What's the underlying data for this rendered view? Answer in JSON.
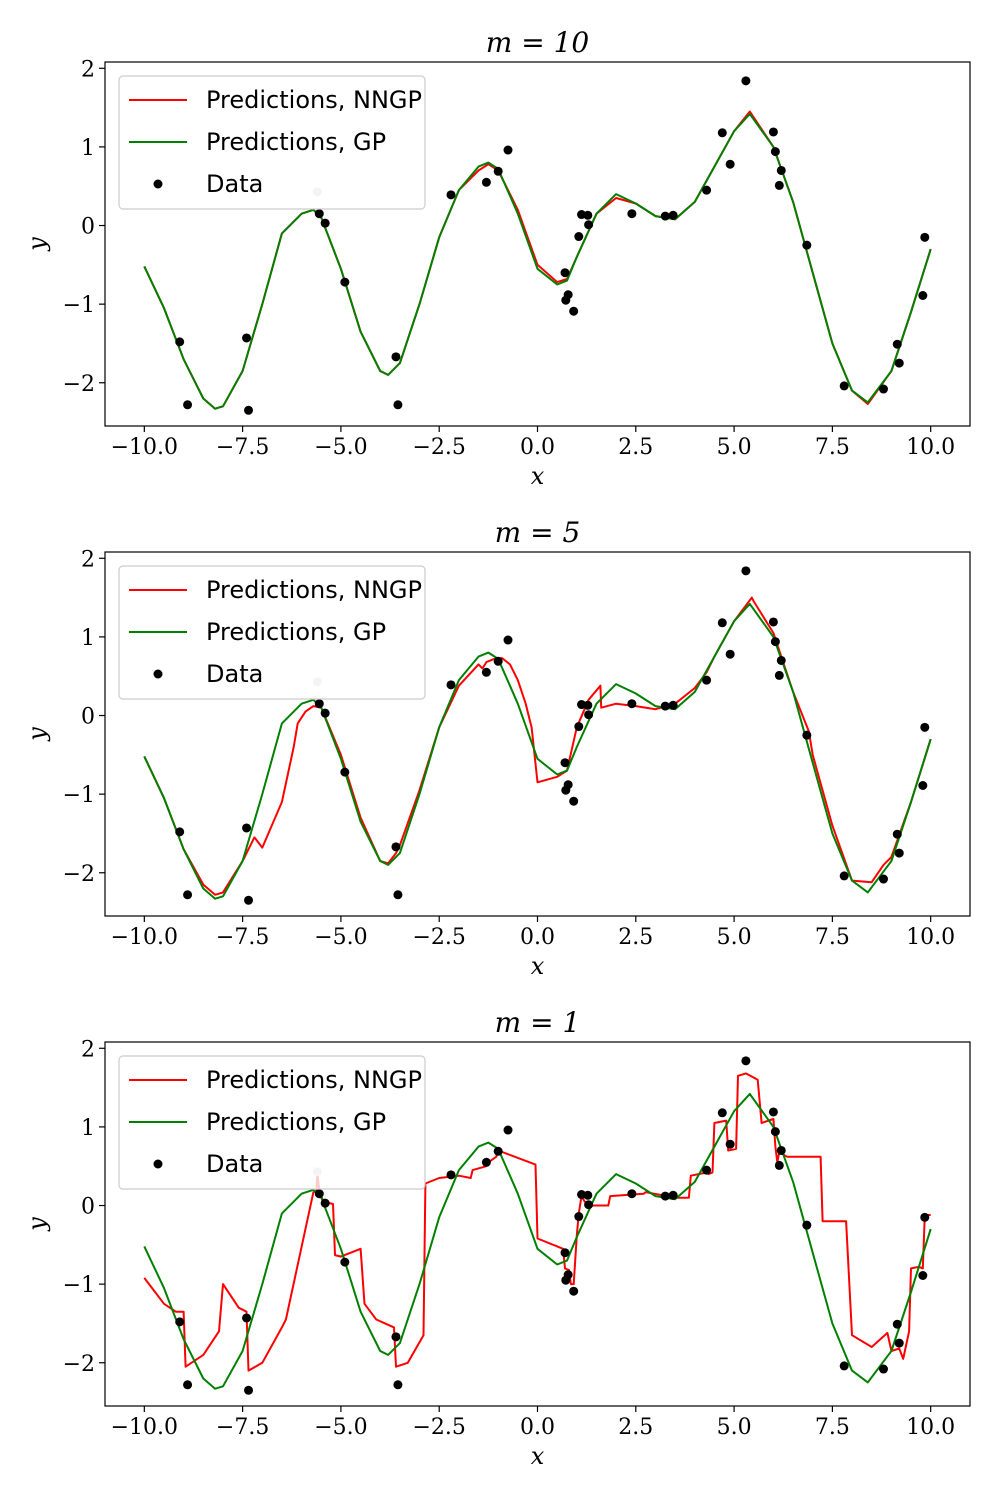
{
  "colors": {
    "nngp": "#ff0000",
    "gp": "#008000",
    "data": "#000000"
  },
  "chart_data": [
    {
      "type": "line",
      "title": "m = 10",
      "xlabel": "x",
      "ylabel": "y",
      "xlim": [
        -11,
        11
      ],
      "ylim": [
        -2.55,
        2.08
      ],
      "xticks": [
        -10,
        -7.5,
        -5,
        -2.5,
        0,
        2.5,
        5,
        7.5,
        10
      ],
      "xtick_labels": [
        "−10.0",
        "−7.5",
        "−5.0",
        "−2.5",
        "0.0",
        "2.5",
        "5.0",
        "7.5",
        "10.0"
      ],
      "yticks": [
        -2,
        -1,
        0,
        1,
        2
      ],
      "ytick_labels": [
        "−2",
        "−1",
        "0",
        "1",
        "2"
      ],
      "legend": {
        "placement": "top-left",
        "entries": [
          "Predictions, NNGP",
          "Predictions, GP",
          "Data"
        ]
      },
      "series": [
        {
          "name": "Predictions, NNGP",
          "x": [
            -10,
            -9.5,
            -9,
            -8.5,
            -8.2,
            -8,
            -7.5,
            -7,
            -6.5,
            -6,
            -5.7,
            -5.5,
            -5,
            -4.5,
            -4,
            -3.8,
            -3.5,
            -3,
            -2.5,
            -2,
            -1.5,
            -1.25,
            -1,
            -0.5,
            0,
            0.5,
            0.75,
            1,
            1.5,
            2,
            2.5,
            3,
            3.5,
            4,
            4.5,
            5,
            5.4,
            6,
            6.5,
            7,
            7.5,
            8,
            8.4,
            9,
            9.5,
            10
          ],
          "y": [
            -0.52,
            -1.05,
            -1.7,
            -2.2,
            -2.33,
            -2.3,
            -1.85,
            -1.0,
            -0.1,
            0.15,
            0.2,
            0.1,
            -0.55,
            -1.35,
            -1.85,
            -1.9,
            -1.75,
            -1.0,
            -0.15,
            0.45,
            0.7,
            0.78,
            0.7,
            0.2,
            -0.5,
            -0.72,
            -0.68,
            -0.4,
            0.15,
            0.35,
            0.28,
            0.12,
            0.08,
            0.3,
            0.75,
            1.2,
            1.45,
            1.0,
            0.3,
            -0.6,
            -1.5,
            -2.1,
            -2.27,
            -1.85,
            -1.1,
            -0.3
          ]
        },
        {
          "name": "Predictions, GP",
          "x": [
            -10,
            -9.5,
            -9,
            -8.5,
            -8.2,
            -8,
            -7.5,
            -7,
            -6.5,
            -6,
            -5.7,
            -5.5,
            -5,
            -4.5,
            -4,
            -3.8,
            -3.5,
            -3,
            -2.5,
            -2,
            -1.5,
            -1.25,
            -1,
            -0.5,
            0,
            0.5,
            0.75,
            1,
            1.5,
            2,
            2.5,
            3,
            3.5,
            4,
            4.5,
            5,
            5.4,
            6,
            6.5,
            7,
            7.5,
            8,
            8.4,
            9,
            9.5,
            10
          ],
          "y": [
            -0.52,
            -1.05,
            -1.7,
            -2.2,
            -2.33,
            -2.3,
            -1.85,
            -1.0,
            -0.1,
            0.15,
            0.2,
            0.1,
            -0.55,
            -1.35,
            -1.85,
            -1.9,
            -1.75,
            -1.0,
            -0.15,
            0.45,
            0.75,
            0.8,
            0.72,
            0.15,
            -0.55,
            -0.75,
            -0.7,
            -0.4,
            0.15,
            0.4,
            0.28,
            0.12,
            0.08,
            0.3,
            0.75,
            1.2,
            1.42,
            1.0,
            0.3,
            -0.6,
            -1.5,
            -2.1,
            -2.25,
            -1.85,
            -1.1,
            -0.3
          ]
        }
      ],
      "points": {
        "name": "Data",
        "x": [
          -9.1,
          -8.9,
          -7.4,
          -7.35,
          -5.6,
          -5.55,
          -5.4,
          -4.9,
          -3.6,
          -3.55,
          -2.2,
          -1.3,
          -1.0,
          -0.75,
          0.7,
          0.72,
          0.78,
          0.92,
          1.05,
          1.12,
          1.28,
          1.3,
          2.4,
          3.25,
          3.45,
          4.3,
          4.7,
          4.9,
          5.3,
          6.0,
          6.05,
          6.15,
          6.2,
          6.85,
          7.8,
          8.8,
          9.15,
          9.2,
          9.8,
          9.85
        ],
        "y": [
          -1.48,
          -2.28,
          -1.43,
          -2.35,
          0.43,
          0.15,
          0.03,
          -0.72,
          -1.67,
          -2.28,
          0.39,
          0.55,
          0.69,
          0.96,
          -0.6,
          -0.95,
          -0.88,
          -1.09,
          -0.14,
          0.14,
          0.13,
          0.01,
          0.15,
          0.12,
          0.13,
          0.45,
          1.18,
          0.78,
          1.84,
          1.19,
          0.94,
          0.51,
          0.7,
          -0.25,
          -2.04,
          -2.08,
          -1.51,
          -1.75,
          -0.89,
          -0.15
        ],
        "light_index": 4
      }
    },
    {
      "type": "line",
      "title": "m = 5",
      "xlabel": "x",
      "ylabel": "y",
      "xlim": [
        -11,
        11
      ],
      "ylim": [
        -2.55,
        2.08
      ],
      "xticks": [
        -10,
        -7.5,
        -5,
        -2.5,
        0,
        2.5,
        5,
        7.5,
        10
      ],
      "xtick_labels": [
        "−10.0",
        "−7.5",
        "−5.0",
        "−2.5",
        "0.0",
        "2.5",
        "5.0",
        "7.5",
        "10.0"
      ],
      "yticks": [
        -2,
        -1,
        0,
        1,
        2
      ],
      "ytick_labels": [
        "−2",
        "−1",
        "0",
        "1",
        "2"
      ],
      "legend": {
        "placement": "top-left",
        "entries": [
          "Predictions, NNGP",
          "Predictions, GP",
          "Data"
        ]
      },
      "series": [
        {
          "name": "Predictions, NNGP",
          "x": [
            -10,
            -9.5,
            -9,
            -8.5,
            -8.2,
            -8,
            -7.5,
            -7.2,
            -7,
            -6.5,
            -6.2,
            -6.1,
            -5.9,
            -5.7,
            -5.5,
            -5,
            -4.5,
            -4,
            -3.8,
            -3.6,
            -3.5,
            -3,
            -2.5,
            -2,
            -1.5,
            -1.4,
            -1.3,
            -1.1,
            -0.9,
            -0.7,
            -0.5,
            -0.3,
            -0.2,
            -0.15,
            0.0,
            0.5,
            0.75,
            1.0,
            1.3,
            1.6,
            1.62,
            2.0,
            2.5,
            3.0,
            3.5,
            4.0,
            4.3,
            4.5,
            5.0,
            5.45,
            5.5,
            6.0,
            6.5,
            6.9,
            7.0,
            7.5,
            8.0,
            8.5,
            8.8,
            9.0,
            9.5,
            10.0
          ],
          "y": [
            -0.52,
            -1.05,
            -1.7,
            -2.15,
            -2.28,
            -2.25,
            -1.85,
            -1.55,
            -1.68,
            -1.1,
            -0.4,
            -0.1,
            0.05,
            0.12,
            0.1,
            -0.5,
            -1.3,
            -1.85,
            -1.88,
            -1.75,
            -1.65,
            -0.95,
            -0.15,
            0.38,
            0.65,
            0.6,
            0.68,
            0.72,
            0.73,
            0.65,
            0.45,
            0.15,
            -0.05,
            -0.15,
            -0.85,
            -0.78,
            -0.7,
            -0.15,
            0.2,
            0.38,
            0.1,
            0.15,
            0.12,
            0.08,
            0.15,
            0.35,
            0.55,
            0.75,
            1.2,
            1.5,
            1.45,
            1.05,
            0.3,
            -0.2,
            -0.5,
            -1.4,
            -2.1,
            -2.12,
            -1.9,
            -1.8,
            -1.1,
            -0.3
          ]
        },
        {
          "name": "Predictions, GP",
          "x": [
            -10,
            -9.5,
            -9,
            -8.5,
            -8.2,
            -8,
            -7.5,
            -7,
            -6.5,
            -6,
            -5.7,
            -5.5,
            -5,
            -4.5,
            -4,
            -3.8,
            -3.5,
            -3,
            -2.5,
            -2,
            -1.5,
            -1.25,
            -1,
            -0.5,
            0,
            0.5,
            0.75,
            1,
            1.5,
            2,
            2.5,
            3,
            3.5,
            4,
            4.5,
            5,
            5.4,
            6,
            6.5,
            7,
            7.5,
            8,
            8.4,
            9,
            9.5,
            10
          ],
          "y": [
            -0.52,
            -1.05,
            -1.7,
            -2.2,
            -2.33,
            -2.3,
            -1.85,
            -1.0,
            -0.1,
            0.15,
            0.2,
            0.1,
            -0.55,
            -1.35,
            -1.85,
            -1.9,
            -1.75,
            -1.0,
            -0.15,
            0.45,
            0.75,
            0.8,
            0.72,
            0.15,
            -0.55,
            -0.75,
            -0.7,
            -0.4,
            0.15,
            0.4,
            0.28,
            0.12,
            0.08,
            0.3,
            0.75,
            1.2,
            1.42,
            1.0,
            0.3,
            -0.6,
            -1.5,
            -2.1,
            -2.25,
            -1.85,
            -1.1,
            -0.3
          ]
        }
      ],
      "points": {
        "name": "Data",
        "x": [
          -9.1,
          -8.9,
          -7.4,
          -7.35,
          -5.6,
          -5.55,
          -5.4,
          -4.9,
          -3.6,
          -3.55,
          -2.2,
          -1.3,
          -1.0,
          -0.75,
          0.7,
          0.72,
          0.78,
          0.92,
          1.05,
          1.12,
          1.28,
          1.3,
          2.4,
          3.25,
          3.45,
          4.3,
          4.7,
          4.9,
          5.3,
          6.0,
          6.05,
          6.15,
          6.2,
          6.85,
          7.8,
          8.8,
          9.15,
          9.2,
          9.8,
          9.85
        ],
        "y": [
          -1.48,
          -2.28,
          -1.43,
          -2.35,
          0.43,
          0.15,
          0.03,
          -0.72,
          -1.67,
          -2.28,
          0.39,
          0.55,
          0.69,
          0.96,
          -0.6,
          -0.95,
          -0.88,
          -1.09,
          -0.14,
          0.14,
          0.13,
          0.01,
          0.15,
          0.12,
          0.13,
          0.45,
          1.18,
          0.78,
          1.84,
          1.19,
          0.94,
          0.51,
          0.7,
          -0.25,
          -2.04,
          -2.08,
          -1.51,
          -1.75,
          -0.89,
          -0.15
        ],
        "light_index": 4
      }
    },
    {
      "type": "line",
      "title": "m = 1",
      "xlabel": "x",
      "ylabel": "y",
      "xlim": [
        -11,
        11
      ],
      "ylim": [
        -2.55,
        2.08
      ],
      "xticks": [
        -10,
        -7.5,
        -5,
        -2.5,
        0,
        2.5,
        5,
        7.5,
        10
      ],
      "xtick_labels": [
        "−10.0",
        "−7.5",
        "−5.0",
        "−2.5",
        "0.0",
        "2.5",
        "5.0",
        "7.5",
        "10.0"
      ],
      "yticks": [
        -2,
        -1,
        0,
        1,
        2
      ],
      "ytick_labels": [
        "−2",
        "−1",
        "0",
        "1",
        "2"
      ],
      "legend": {
        "placement": "top-left",
        "entries": [
          "Predictions, NNGP",
          "Predictions, GP",
          "Data"
        ]
      },
      "series": [
        {
          "name": "Predictions, NNGP",
          "x": [
            -10,
            -9.5,
            -9.2,
            -9.0,
            -8.95,
            -8.5,
            -8.1,
            -8.0,
            -7.6,
            -7.4,
            -7.35,
            -7.0,
            -6.5,
            -6.4,
            -5.7,
            -5.62,
            -5.6,
            -5.55,
            -5.45,
            -5.2,
            -5.15,
            -5.0,
            -4.5,
            -4.4,
            -4.1,
            -3.65,
            -3.6,
            -3.3,
            -2.9,
            -2.85,
            -2.5,
            -2.0,
            -1.7,
            -1.65,
            -1.3,
            -1.25,
            -1.05,
            -1.0,
            -0.05,
            0.0,
            0.5,
            0.65,
            0.7,
            0.8,
            0.85,
            0.92,
            1.0,
            1.05,
            1.12,
            1.2,
            1.3,
            1.8,
            1.85,
            2.7,
            2.75,
            3.2,
            3.25,
            3.3,
            3.35,
            3.85,
            3.9,
            4.3,
            4.35,
            4.45,
            4.5,
            4.8,
            4.85,
            5.05,
            5.1,
            5.3,
            5.6,
            5.7,
            6.0,
            6.05,
            6.1,
            6.15,
            6.35,
            7.2,
            7.25,
            7.85,
            8.0,
            8.5,
            8.9,
            9.0,
            9.2,
            9.3,
            9.45,
            9.5,
            9.7,
            9.8,
            9.85,
            10.0
          ],
          "y": [
            -0.92,
            -1.25,
            -1.35,
            -1.35,
            -2.05,
            -1.9,
            -1.6,
            -1.0,
            -1.3,
            -1.35,
            -2.1,
            -2.0,
            -1.55,
            -1.45,
            0.17,
            0.18,
            0.4,
            0.2,
            0.05,
            0.02,
            -0.63,
            -0.65,
            -0.55,
            -1.25,
            -1.45,
            -1.55,
            -2.05,
            -2.0,
            -1.65,
            0.28,
            0.35,
            0.38,
            0.35,
            0.45,
            0.5,
            0.55,
            0.62,
            0.7,
            0.52,
            -0.42,
            -0.52,
            -0.55,
            -0.8,
            -0.82,
            -1.0,
            -1.0,
            -0.38,
            -0.1,
            0.12,
            0.05,
            0.0,
            0.0,
            0.12,
            0.15,
            0.17,
            0.13,
            0.1,
            0.13,
            0.1,
            0.1,
            0.38,
            0.42,
            0.4,
            0.42,
            1.05,
            1.08,
            0.7,
            0.72,
            1.65,
            1.68,
            1.6,
            1.05,
            1.1,
            0.75,
            0.55,
            0.68,
            0.62,
            0.62,
            -0.2,
            -0.2,
            -1.65,
            -1.8,
            -1.62,
            -1.85,
            -1.82,
            -1.95,
            -1.6,
            -0.8,
            -0.78,
            -0.8,
            -0.12,
            -0.12
          ]
        },
        {
          "name": "Predictions, GP",
          "x": [
            -10,
            -9.5,
            -9,
            -8.5,
            -8.2,
            -8,
            -7.5,
            -7,
            -6.5,
            -6,
            -5.7,
            -5.5,
            -5,
            -4.5,
            -4,
            -3.8,
            -3.5,
            -3,
            -2.5,
            -2,
            -1.5,
            -1.25,
            -1,
            -0.5,
            0,
            0.5,
            0.75,
            1,
            1.5,
            2,
            2.5,
            3,
            3.5,
            4,
            4.5,
            5,
            5.4,
            6,
            6.5,
            7,
            7.5,
            8,
            8.4,
            9,
            9.5,
            10
          ],
          "y": [
            -0.52,
            -1.05,
            -1.7,
            -2.2,
            -2.33,
            -2.3,
            -1.85,
            -1.0,
            -0.1,
            0.15,
            0.2,
            0.1,
            -0.55,
            -1.35,
            -1.85,
            -1.9,
            -1.75,
            -1.0,
            -0.15,
            0.45,
            0.75,
            0.8,
            0.72,
            0.15,
            -0.55,
            -0.75,
            -0.7,
            -0.4,
            0.15,
            0.4,
            0.28,
            0.12,
            0.08,
            0.3,
            0.75,
            1.2,
            1.42,
            1.0,
            0.3,
            -0.6,
            -1.5,
            -2.1,
            -2.25,
            -1.85,
            -1.1,
            -0.3
          ]
        }
      ],
      "points": {
        "name": "Data",
        "x": [
          -9.1,
          -8.9,
          -7.4,
          -7.35,
          -5.6,
          -5.55,
          -5.4,
          -4.9,
          -3.6,
          -3.55,
          -2.2,
          -1.3,
          -1.0,
          -0.75,
          0.7,
          0.72,
          0.78,
          0.92,
          1.05,
          1.12,
          1.28,
          1.3,
          2.4,
          3.25,
          3.45,
          4.3,
          4.7,
          4.9,
          5.3,
          6.0,
          6.05,
          6.15,
          6.2,
          6.85,
          7.8,
          8.8,
          9.15,
          9.2,
          9.8,
          9.85
        ],
        "y": [
          -1.48,
          -2.28,
          -1.43,
          -2.35,
          0.43,
          0.15,
          0.03,
          -0.72,
          -1.67,
          -2.28,
          0.39,
          0.55,
          0.69,
          0.96,
          -0.6,
          -0.95,
          -0.88,
          -1.09,
          -0.14,
          0.14,
          0.13,
          0.01,
          0.15,
          0.12,
          0.13,
          0.45,
          1.18,
          0.78,
          1.84,
          1.19,
          0.94,
          0.51,
          0.7,
          -0.25,
          -2.04,
          -2.08,
          -1.51,
          -1.75,
          -0.89,
          -0.15
        ],
        "light_index": 4
      }
    }
  ]
}
